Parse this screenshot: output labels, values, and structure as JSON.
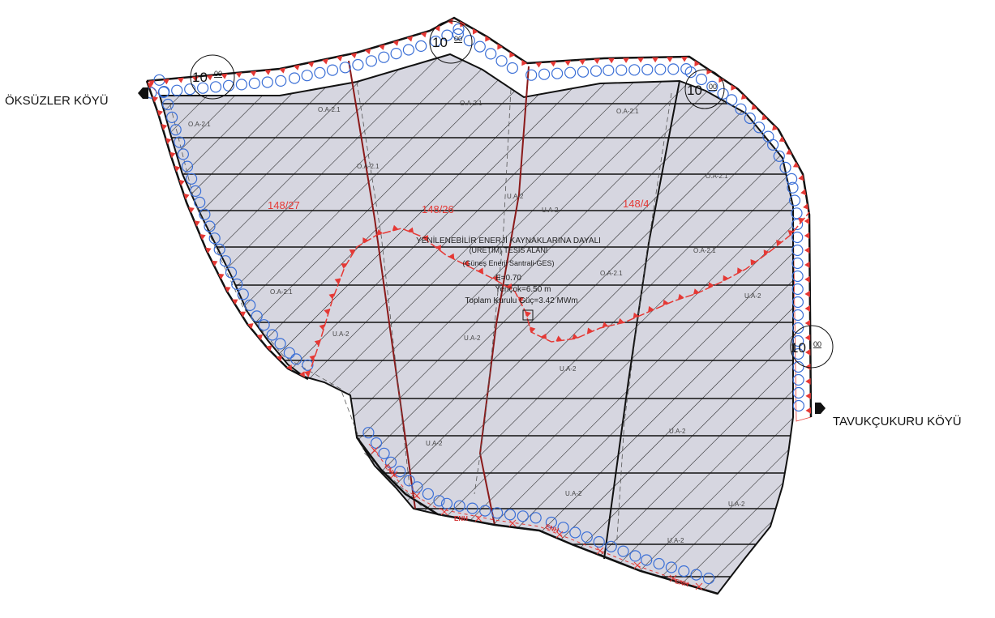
{
  "villages": {
    "west": "ÖKSÜZLER KÖYÜ",
    "east": "TAVUKÇUKURU KÖYÜ"
  },
  "parcels": [
    "148/27",
    "148/26",
    "148/4"
  ],
  "zones": {
    "oa21": "O.A-2.1",
    "ua2": "U.A-2"
  },
  "center_label": {
    "line1": "YENİLENEBİLİR ENERJİ KAYNAKLARINA DAYALI",
    "line2": "(ÜRETİM) TESİS ALANI",
    "line3": "(Güneş Enerji Santrali-GES)",
    "line4": "E=0.70",
    "line5": "Yençok=6.50 m",
    "line6": "Toplam Kurulu Güç=3.42 MWm"
  },
  "road_width": {
    "value": "10",
    "decimal": "00"
  },
  "enh_label": "ENH",
  "colors": {
    "parcel_fill": "#d6d6e0",
    "boundary_red": "#e53935",
    "circle_blue": "#3b6fd6",
    "hatch": "#222222"
  }
}
